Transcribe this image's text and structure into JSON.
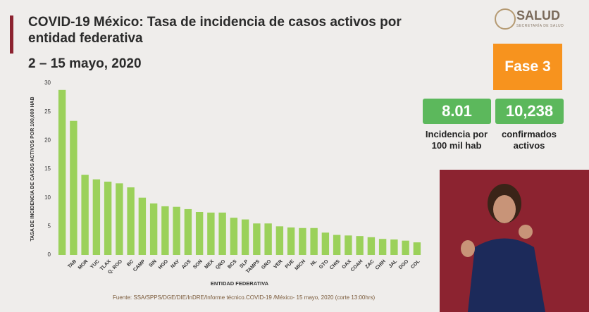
{
  "header": {
    "logo": "SALUD",
    "logo_sub": "SECRETARÍA DE SALUD"
  },
  "panel": {
    "phase": "Fase 3",
    "incidence": "8.01",
    "incidence_label": "Incidencia por 100 mil hab",
    "confirmed": "10,238",
    "confirmed_label": "confirmados activos"
  },
  "chart_data": {
    "type": "bar",
    "title": "COVID-19 México: Tasa de incidencia de casos activos por entidad federativa",
    "subtitle": "2 – 15 mayo, 2020",
    "y_label": "TASA DE INCIDENCIA DE CASOS ACTIVOS POR 100,000 HAB",
    "x_label": "ENTIDAD FEDERATIVA",
    "source": "Fuente: SSA/SPPS/DGE/DIE/InDRE/Informe técnico.COVID-19 /México- 15 mayo, 2020 (corte 13:00hrs)",
    "categories": [
      null,
      "TAB",
      "MOR",
      "YUC",
      "TLAX",
      "Q. ROO",
      "BC",
      "CAMP",
      "SIN",
      "HGO",
      "NAY",
      "AGS",
      "SON",
      "MEX",
      "QRO",
      "BCS",
      "SLP",
      "TAMPS",
      "GRO",
      "VER",
      "PUE",
      "MICH",
      "NL",
      "GTO",
      "CHIS",
      "OAX",
      "COAH",
      "ZAC",
      "CHIH",
      "JAL",
      "DGO",
      "COL"
    ],
    "values": [
      28.8,
      23.4,
      14.0,
      13.2,
      12.8,
      12.5,
      11.8,
      10.0,
      9.0,
      8.5,
      8.4,
      8.0,
      7.5,
      7.4,
      7.4,
      6.5,
      6.2,
      5.5,
      5.5,
      5.0,
      4.8,
      4.7,
      4.7,
      3.9,
      3.5,
      3.4,
      3.3,
      3.1,
      2.8,
      2.7,
      2.5,
      2.2
    ],
    "color": "#9bd15a",
    "ylim": [
      0,
      30
    ],
    "yticks": [
      0,
      5,
      10,
      15,
      20,
      25,
      30
    ],
    "grid": false
  }
}
